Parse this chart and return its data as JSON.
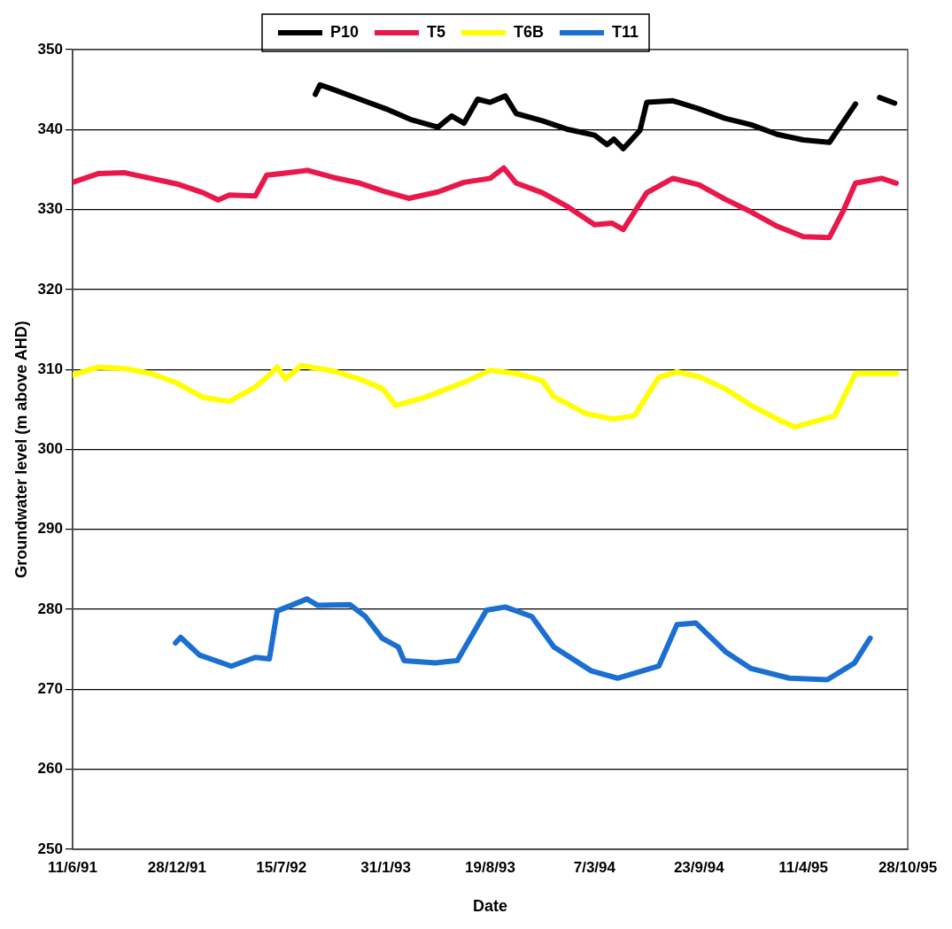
{
  "chart_data": {
    "type": "line",
    "xlabel": "Date",
    "ylabel": "Groundwater level (m above AHD)",
    "xlim": [
      "1991-06-11",
      "1995-10-28"
    ],
    "xticks": [
      {
        "value": "1991-06-11",
        "label": "11/6/91"
      },
      {
        "value": "1991-12-28",
        "label": "28/12/91"
      },
      {
        "value": "1992-07-15",
        "label": "15/7/92"
      },
      {
        "value": "1993-01-31",
        "label": "31/1/93"
      },
      {
        "value": "1993-08-19",
        "label": "19/8/93"
      },
      {
        "value": "1994-03-07",
        "label": "7/3/94"
      },
      {
        "value": "1994-09-23",
        "label": "23/9/94"
      },
      {
        "value": "1995-04-11",
        "label": "11/4/95"
      },
      {
        "value": "1995-10-28",
        "label": "28/10/95"
      }
    ],
    "ylim": [
      250,
      350
    ],
    "yticks": [
      250,
      260,
      270,
      280,
      290,
      300,
      310,
      320,
      330,
      340,
      350
    ],
    "grid": "y",
    "legend": "top",
    "marker": "none",
    "line_style": "solid",
    "series": [
      {
        "name": "P10",
        "color": "#000000",
        "x": [
          "1992-09-18",
          "1992-09-27",
          "1992-10-23",
          "1992-12-12",
          "1993-01-31",
          "1993-03-22",
          "1993-05-11",
          "1993-06-06",
          "1993-06-30",
          "1993-07-26",
          "1993-08-19",
          "1993-09-17",
          "1993-10-08",
          "1993-11-27",
          "1994-01-16",
          "1994-03-07",
          "1994-03-31",
          "1994-04-13",
          "1994-05-01",
          "1994-06-02",
          "1994-06-15",
          "1994-08-04",
          "1994-09-23",
          "1994-11-12",
          "1995-01-01",
          "1995-02-20",
          "1995-04-11",
          "1995-05-31",
          "1995-07-20",
          "1995-08-10",
          "1995-09-04",
          "1995-10-03"
        ],
        "values": [
          344.4,
          345.6,
          345.0,
          343.8,
          342.6,
          341.2,
          340.3,
          341.7,
          340.8,
          343.8,
          343.4,
          344.2,
          342.0,
          341.1,
          340.0,
          339.3,
          338.1,
          338.8,
          337.6,
          339.9,
          343.4,
          343.6,
          342.6,
          341.4,
          340.6,
          339.4,
          338.7,
          338.4,
          343.2,
          null,
          344.0,
          343.3
        ]
      },
      {
        "name": "T5",
        "color": "#e8184a",
        "x": [
          "1991-06-11",
          "1991-07-31",
          "1991-09-19",
          "1991-11-08",
          "1991-12-28",
          "1992-02-16",
          "1992-03-16",
          "1992-04-06",
          "1992-05-26",
          "1992-06-17",
          "1992-07-15",
          "1992-09-03",
          "1992-10-23",
          "1992-12-12",
          "1993-01-31",
          "1993-03-16",
          "1993-05-11",
          "1993-06-30",
          "1993-08-19",
          "1993-09-14",
          "1993-10-08",
          "1993-11-27",
          "1994-01-16",
          "1994-03-07",
          "1994-04-09",
          "1994-05-01",
          "1994-06-15",
          "1994-08-04",
          "1994-09-23",
          "1994-11-12",
          "1995-01-01",
          "1995-02-20",
          "1995-04-11",
          "1995-05-31",
          "1995-06-27",
          "1995-07-20",
          "1995-09-08",
          "1995-10-06"
        ],
        "values": [
          333.4,
          334.5,
          334.6,
          333.9,
          333.2,
          332.1,
          331.2,
          331.8,
          331.7,
          334.3,
          334.5,
          334.9,
          334.0,
          333.3,
          332.2,
          331.4,
          332.2,
          333.4,
          333.9,
          335.2,
          333.3,
          332.1,
          330.3,
          328.1,
          328.3,
          327.5,
          332.1,
          333.9,
          333.1,
          331.3,
          329.7,
          327.9,
          326.6,
          326.5,
          329.9,
          333.3,
          333.9,
          333.3
        ]
      },
      {
        "name": "T6B",
        "color": "#ffff00",
        "x": [
          "1991-06-11",
          "1991-07-31",
          "1991-09-19",
          "1991-11-08",
          "1991-12-28",
          "1992-02-16",
          "1992-04-06",
          "1992-05-26",
          "1992-06-22",
          "1992-07-07",
          "1992-07-23",
          "1992-08-22",
          "1992-10-23",
          "1992-12-12",
          "1993-01-25",
          "1993-02-19",
          "1993-04-20",
          "1993-06-30",
          "1993-08-19",
          "1993-10-08",
          "1993-11-27",
          "1993-12-19",
          "1994-02-18",
          "1994-04-11",
          "1994-05-22",
          "1994-07-08",
          "1994-08-12",
          "1994-09-23",
          "1994-11-12",
          "1995-01-01",
          "1995-02-20",
          "1995-03-26",
          "1995-06-10",
          "1995-07-20",
          "1995-09-08",
          "1995-10-06"
        ],
        "values": [
          309.3,
          310.3,
          310.1,
          309.5,
          308.3,
          306.5,
          306.0,
          307.8,
          309.3,
          310.3,
          308.8,
          310.5,
          309.8,
          308.8,
          307.6,
          305.5,
          306.6,
          308.4,
          309.9,
          309.5,
          308.6,
          306.6,
          304.5,
          303.8,
          304.2,
          309.0,
          309.7,
          309.1,
          307.6,
          305.5,
          303.8,
          302.8,
          304.2,
          309.5,
          309.5,
          309.5
        ]
      },
      {
        "name": "T11",
        "color": "#1a6fd0",
        "x": [
          "1991-12-25",
          "1992-01-04",
          "1992-02-09",
          "1992-04-10",
          "1992-05-26",
          "1992-06-22",
          "1992-07-07",
          "1992-09-02",
          "1992-09-23",
          "1992-11-23",
          "1992-12-23",
          "1993-01-24",
          "1993-02-24",
          "1993-03-07",
          "1993-05-06",
          "1993-06-17",
          "1993-08-12",
          "1993-09-17",
          "1993-11-07",
          "1993-12-19",
          "1994-03-01",
          "1994-04-20",
          "1994-07-08",
          "1994-08-12",
          "1994-09-17",
          "1994-11-13",
          "1995-01-01",
          "1995-03-15",
          "1995-05-27",
          "1995-07-18",
          "1995-08-17"
        ],
        "values": [
          275.8,
          276.5,
          274.3,
          272.9,
          274.0,
          273.8,
          279.8,
          281.3,
          280.5,
          280.6,
          279.1,
          276.4,
          275.3,
          273.6,
          273.3,
          273.6,
          279.9,
          280.3,
          279.1,
          275.3,
          272.3,
          271.4,
          272.9,
          278.1,
          278.3,
          274.7,
          272.6,
          271.4,
          271.2,
          273.3,
          276.4
        ]
      }
    ]
  }
}
